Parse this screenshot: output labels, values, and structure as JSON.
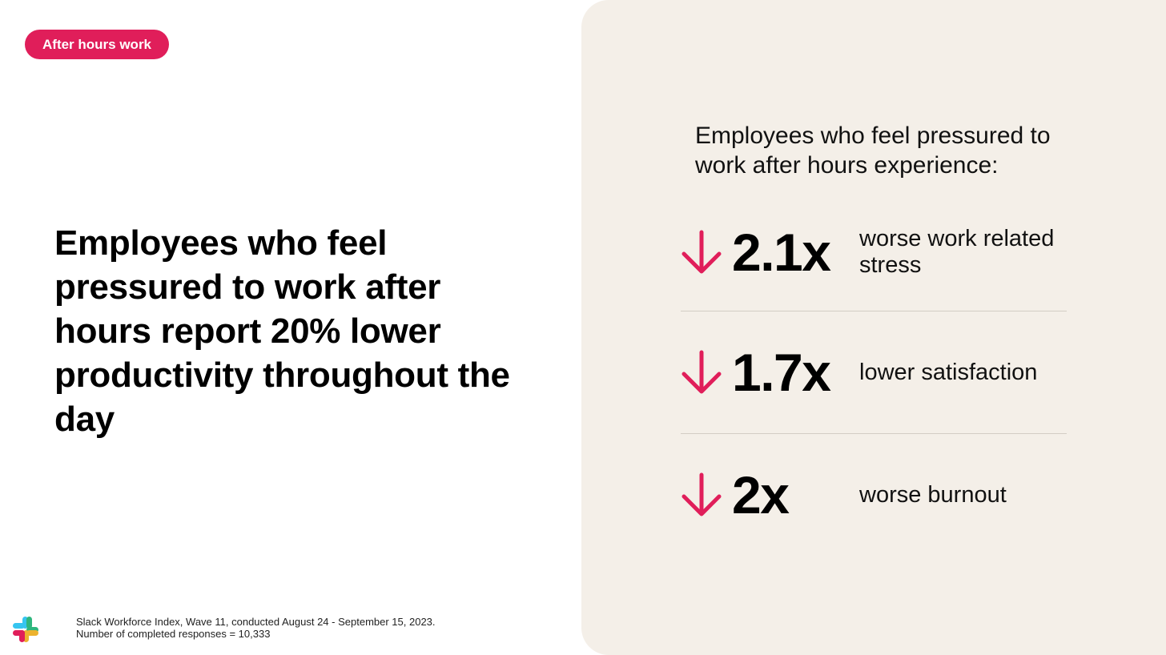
{
  "tag": {
    "label": "After hours work"
  },
  "headline": "Employees who feel pressured to work after hours report 20% lower productivity throughout the day",
  "panel": {
    "title": "Employees who feel pressured to work after hours experience:",
    "stats": [
      {
        "value": "2.1x",
        "label": "worse work related stress",
        "icon": "arrow-down-icon"
      },
      {
        "value": "1.7x",
        "label": "lower satisfaction",
        "icon": "arrow-down-icon"
      },
      {
        "value": "2x",
        "label": "worse burnout",
        "icon": "arrow-down-icon"
      }
    ]
  },
  "footer": {
    "source": "Slack Workforce Index, Wave 11, conducted August 24 - September 15, 2023.",
    "responses": "Number of completed responses = 10,333",
    "logo": "slack-logo-icon"
  },
  "colors": {
    "accent": "#e01e5a",
    "panel_background": "#f4efe8",
    "logo_blue": "#36c5f0",
    "logo_green": "#2eb67d",
    "logo_yellow": "#ecb22e",
    "logo_red": "#e01e5a"
  }
}
